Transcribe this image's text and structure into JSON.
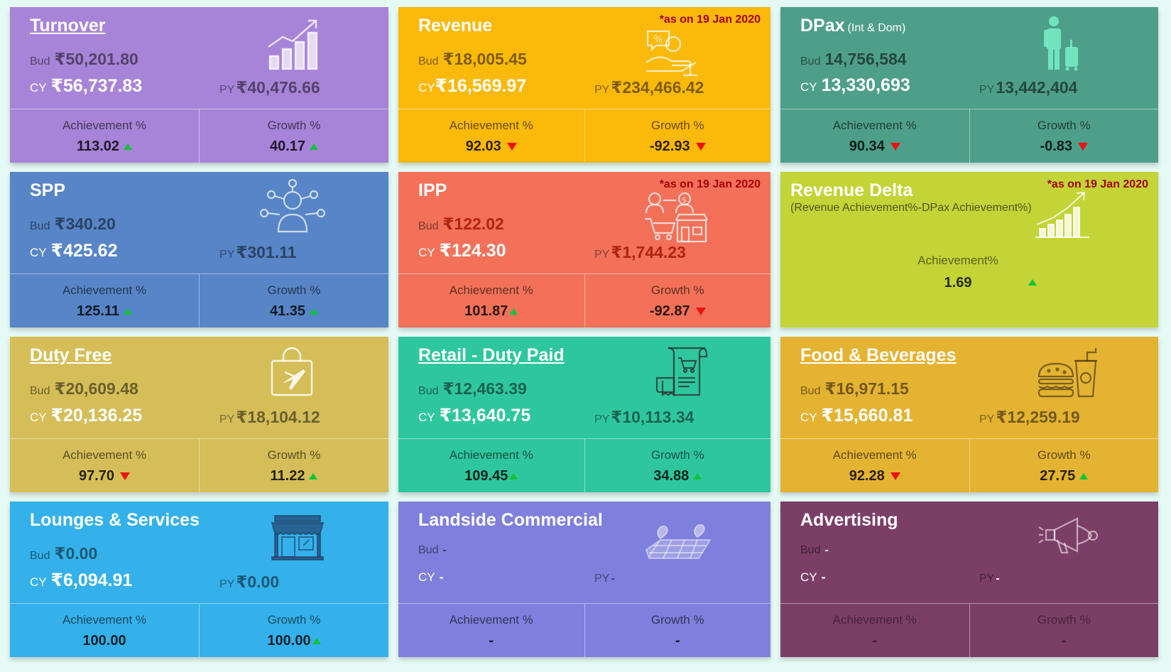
{
  "labels": {
    "bud": "Bud",
    "cy": "CY",
    "py": "PY",
    "achievement": "Achievement %",
    "growth": "Growth %"
  },
  "tiles": {
    "turnover": {
      "title": "Turnover",
      "bud": "₹50,201.80",
      "cy": "₹56,737.83",
      "py": "₹40,476.66",
      "achievement": "113.02",
      "achievement_trend": "up",
      "growth": "40.17",
      "growth_trend": "up",
      "icon": "bar-chart-growth-icon",
      "color": "#a784d8"
    },
    "revenue": {
      "title": "Revenue",
      "note": "*as on 19 Jan 2020",
      "bud": "₹18,005.45",
      "cy": "₹16,569.97",
      "py": "₹234,466.42",
      "achievement": "92.03",
      "achievement_trend": "down",
      "growth": "-92.93",
      "growth_trend": "down",
      "icon": "discount-hand-icon",
      "color": "#fbb90a"
    },
    "dpax": {
      "title": "DPax",
      "subtitle": "(Int & Dom)",
      "bud": "14,756,584",
      "cy": "13,330,693",
      "py": "13,442,404",
      "achievement": "90.34",
      "achievement_trend": "down",
      "growth": "-0.83",
      "growth_trend": "down",
      "icon": "traveller-luggage-icon",
      "color": "#4e9f89"
    },
    "spp": {
      "title": "SPP",
      "bud": "₹340.20",
      "cy": "₹425.62",
      "py": "₹301.11",
      "achievement": "125.11",
      "achievement_trend": "up",
      "growth": "41.35",
      "growth_trend": "up",
      "icon": "person-network-icon",
      "color": "#5785c7"
    },
    "ipp": {
      "title": "IPP",
      "note": "*as on 19 Jan 2020",
      "bud": "₹122.02",
      "cy": "₹124.30",
      "py": "₹1,744.23",
      "achievement": "101.87",
      "achievement_trend": "up",
      "growth": "-92.87",
      "growth_trend": "down",
      "icon": "shopping-people-icon",
      "color": "#f37159"
    },
    "delta": {
      "title": "Revenue Delta",
      "subtitle": "(Revenue Achievement%-DPax Achievement%)",
      "note": "*as on 19 Jan 2020",
      "achievement_label": "Achievement%",
      "achievement": "1.69",
      "achievement_trend": "up",
      "icon": "growth-chart-icon",
      "color": "#c2d436"
    },
    "dutyfree": {
      "title": "Duty Free",
      "bud": "₹20,609.48",
      "cy": "₹20,136.25",
      "py": "₹18,104.12",
      "achievement": "97.70",
      "achievement_trend": "down",
      "growth": "11.22",
      "growth_trend": "up",
      "icon": "shopping-bag-plane-icon",
      "color": "#d5be58"
    },
    "retail": {
      "title": "Retail - Duty Paid",
      "bud": "₹12,463.39",
      "cy": "₹13,640.75",
      "py": "₹10,113.34",
      "achievement": "109.45",
      "achievement_trend": "up",
      "growth": "34.88",
      "growth_trend": "up",
      "icon": "receipt-cart-icon",
      "color": "#2ec79d"
    },
    "food": {
      "title": "Food & Beverages",
      "bud": "₹16,971.15",
      "cy": "₹15,660.81",
      "py": "₹12,259.19",
      "achievement": "92.28",
      "achievement_trend": "down",
      "growth": "27.75",
      "growth_trend": "up",
      "icon": "burger-drink-icon",
      "color": "#e4b331"
    },
    "lounges": {
      "title": "Lounges & Services",
      "bud": "₹0.00",
      "cy": "₹6,094.91",
      "py": "₹0.00",
      "achievement": "100.00",
      "achievement_trend": "none",
      "growth": "100.00",
      "growth_trend": "up",
      "icon": "storefront-icon",
      "color": "#34b1ea"
    },
    "landside": {
      "title": "Landside Commercial",
      "bud": "-",
      "cy": "-",
      "py": "-",
      "achievement": "-",
      "achievement_trend": "none",
      "growth": "-",
      "growth_trend": "none",
      "icon": "map-pins-icon",
      "color": "#7f7fdd"
    },
    "adv": {
      "title": "Advertising",
      "bud": "-",
      "cy": "-",
      "py": "-",
      "achievement": "-",
      "achievement_trend": "none",
      "growth": "-",
      "growth_trend": "none",
      "icon": "megaphone-icon",
      "color": "#7b3e66"
    }
  }
}
